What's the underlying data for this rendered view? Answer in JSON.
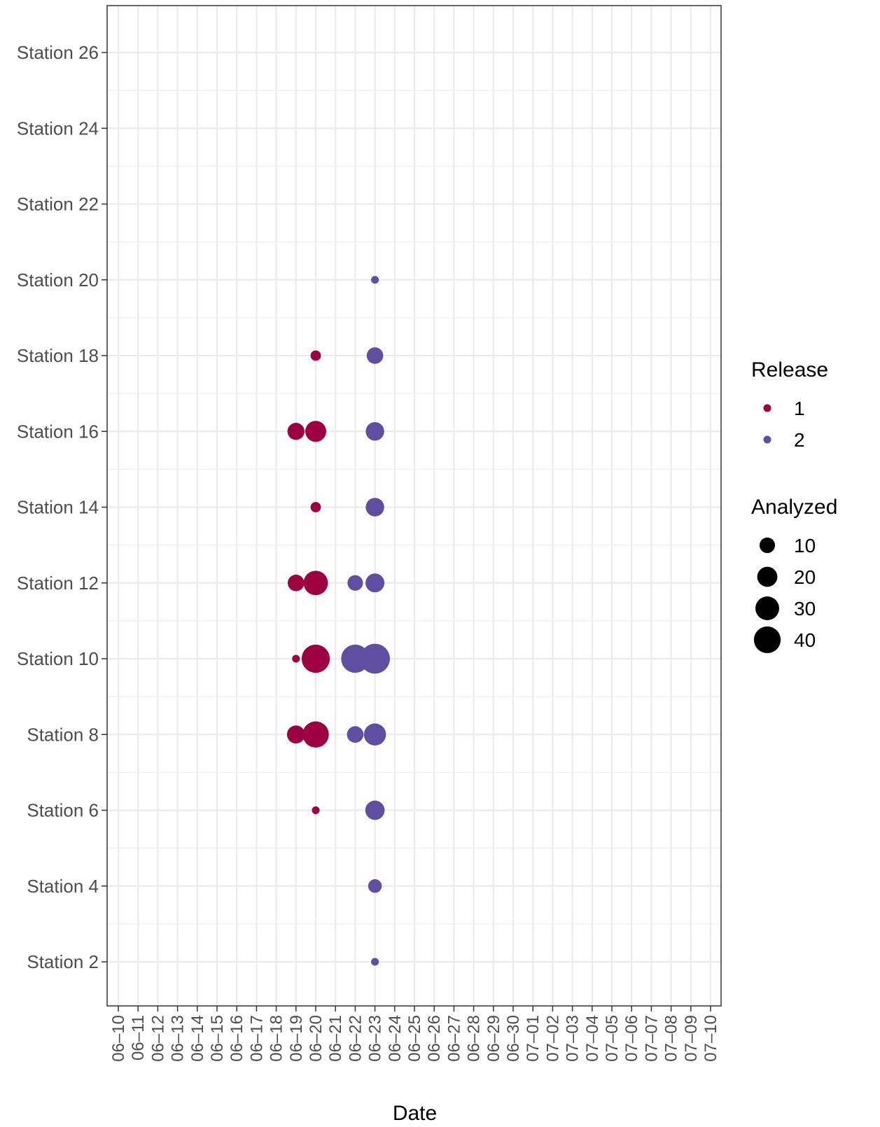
{
  "chart_data": {
    "type": "scatter",
    "xlabel": "Date",
    "ylabel": "",
    "x_categories": [
      "06–10",
      "06–11",
      "06–12",
      "06–13",
      "06–14",
      "06–15",
      "06–16",
      "06–17",
      "06–18",
      "06–19",
      "06–20",
      "06–21",
      "06–22",
      "06–23",
      "06–24",
      "06–25",
      "06–26",
      "06–27",
      "06–28",
      "06–29",
      "06–30",
      "07–01",
      "07–02",
      "07–03",
      "07–04",
      "07–05",
      "07–06",
      "07–07",
      "07–08",
      "07–09",
      "07–10"
    ],
    "y_categories": [
      "Station 2",
      "Station 4",
      "Station 6",
      "Station 8",
      "Station 10",
      "Station 12",
      "Station 14",
      "Station 16",
      "Station 18",
      "Station 20",
      "Station 22",
      "Station 24",
      "Station 26"
    ],
    "grid": true,
    "legend_position": "right",
    "color_legend": {
      "title": "Release",
      "entries": [
        {
          "label": "1",
          "color": "#9e0142"
        },
        {
          "label": "2",
          "color": "#5e4fa2"
        }
      ]
    },
    "size_legend": {
      "title": "Analyzed",
      "entries": [
        10,
        20,
        30,
        40
      ]
    },
    "series": [
      {
        "release": "1",
        "color": "#9e0142",
        "points": [
          {
            "date": "06–20",
            "station": "Station 18",
            "analyzed": 3
          },
          {
            "date": "06–19",
            "station": "Station 16",
            "analyzed": 13
          },
          {
            "date": "06–20",
            "station": "Station 16",
            "analyzed": 22
          },
          {
            "date": "06–20",
            "station": "Station 14",
            "analyzed": 3
          },
          {
            "date": "06–19",
            "station": "Station 12",
            "analyzed": 12
          },
          {
            "date": "06–20",
            "station": "Station 12",
            "analyzed": 32
          },
          {
            "date": "06–19",
            "station": "Station 10",
            "analyzed": 1
          },
          {
            "date": "06–20",
            "station": "Station 10",
            "analyzed": 45
          },
          {
            "date": "06–19",
            "station": "Station 8",
            "analyzed": 15
          },
          {
            "date": "06–20",
            "station": "Station 8",
            "analyzed": 38
          },
          {
            "date": "06–20",
            "station": "Station 6",
            "analyzed": 1
          }
        ]
      },
      {
        "release": "2",
        "color": "#5e4fa2",
        "points": [
          {
            "date": "06–23",
            "station": "Station 20",
            "analyzed": 1
          },
          {
            "date": "06–23",
            "station": "Station 18",
            "analyzed": 12
          },
          {
            "date": "06–23",
            "station": "Station 16",
            "analyzed": 16
          },
          {
            "date": "06–23",
            "station": "Station 14",
            "analyzed": 16
          },
          {
            "date": "06–22",
            "station": "Station 12",
            "analyzed": 10
          },
          {
            "date": "06–23",
            "station": "Station 12",
            "analyzed": 17
          },
          {
            "date": "06–22",
            "station": "Station 10",
            "analyzed": 45
          },
          {
            "date": "06–23",
            "station": "Station 10",
            "analyzed": 52
          },
          {
            "date": "06–22",
            "station": "Station 8",
            "analyzed": 12
          },
          {
            "date": "06–23",
            "station": "Station 8",
            "analyzed": 25
          },
          {
            "date": "06–23",
            "station": "Station 6",
            "analyzed": 18
          },
          {
            "date": "06–23",
            "station": "Station 4",
            "analyzed": 7
          },
          {
            "date": "06–23",
            "station": "Station 2",
            "analyzed": 1
          }
        ]
      }
    ]
  }
}
